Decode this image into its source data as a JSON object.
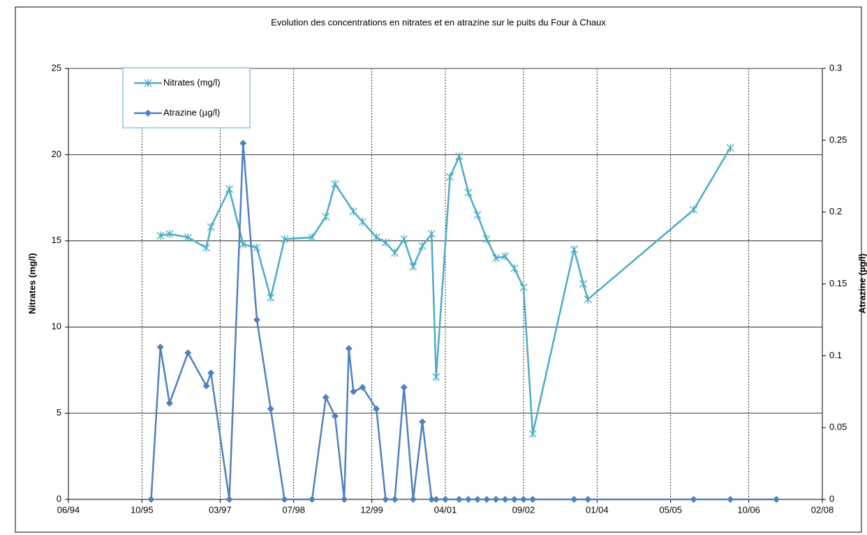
{
  "chart_data": {
    "type": "line",
    "title": "Evolution des concentrations en nitrates et en atrazine sur le puits du Four à Chaux",
    "y_label": "Nitrates (mg/l)",
    "y2_label": "Atrazine (µg/l)",
    "xlim": [
      "1994-06",
      "2008-02"
    ],
    "xticks": [
      {
        "value": "1994-06",
        "label": "06/94"
      },
      {
        "value": "1995-10",
        "label": "10/95"
      },
      {
        "value": "1997-03",
        "label": "03/97"
      },
      {
        "value": "1998-07",
        "label": "07/98"
      },
      {
        "value": "1999-12",
        "label": "12/99"
      },
      {
        "value": "2001-04",
        "label": "04/01"
      },
      {
        "value": "2002-09",
        "label": "09/02"
      },
      {
        "value": "2004-01",
        "label": "01/04"
      },
      {
        "value": "2005-05",
        "label": "05/05"
      },
      {
        "value": "2006-10",
        "label": "10/06"
      },
      {
        "value": "2008-02",
        "label": "02/08"
      }
    ],
    "ylim": [
      0,
      25
    ],
    "yticks": [
      0,
      5,
      10,
      15,
      20,
      25
    ],
    "y2lim": [
      0,
      0.3
    ],
    "y2ticks": [
      0,
      0.05,
      0.1,
      0.15,
      0.2,
      0.25,
      0.3
    ],
    "grid": true,
    "legend": "top-left",
    "series": [
      {
        "name": "Nitrates (mg/l)",
        "color": "#4bacc6",
        "marker": "asterisk",
        "x": [
          "1996-02",
          "1996-04",
          "1996-08",
          "1996-12",
          "1997-01",
          "1997-05",
          "1997-08",
          "1997-11",
          "1998-02",
          "1998-05",
          "1998-11",
          "1999-02",
          "1999-04",
          "1999-08",
          "1999-10",
          "2000-01",
          "2000-03",
          "2000-05",
          "2000-07",
          "2000-09",
          "2000-11",
          "2001-01",
          "2001-02",
          "2001-05",
          "2001-07",
          "2001-09",
          "2001-11",
          "2002-01",
          "2002-03",
          "2002-05",
          "2002-07",
          "2002-09",
          "2002-11",
          "2003-08",
          "2003-10",
          "2003-11",
          "2005-10",
          "2006-06"
        ],
        "values": [
          15.3,
          15.4,
          15.2,
          14.6,
          15.8,
          18.0,
          14.8,
          14.6,
          11.7,
          15.1,
          15.2,
          16.4,
          18.3,
          16.7,
          16.1,
          15.2,
          14.9,
          14.3,
          15.1,
          13.5,
          14.7,
          15.4,
          7.1,
          18.7,
          19.9,
          17.8,
          16.5,
          15.1,
          14.0,
          14.1,
          13.4,
          12.3,
          3.8,
          14.5,
          12.5,
          11.6,
          16.8,
          20.4
        ]
      },
      {
        "name": "Atrazine (µg/l)",
        "color": "#4f81bd",
        "marker": "diamond",
        "axis": "y2",
        "x": [
          "1995-12",
          "1996-02",
          "1996-04",
          "1996-08",
          "1996-12",
          "1997-01",
          "1997-05",
          "1997-08",
          "1997-11",
          "1998-02",
          "1998-05",
          "1998-11",
          "1999-02",
          "1999-04",
          "1999-06",
          "1999-07",
          "1999-08",
          "1999-10",
          "2000-01",
          "2000-03",
          "2000-05",
          "2000-07",
          "2000-09",
          "2000-11",
          "2001-01",
          "2001-02",
          "2001-04",
          "2001-07",
          "2001-09",
          "2001-11",
          "2002-01",
          "2002-03",
          "2002-05",
          "2002-07",
          "2002-09",
          "2002-11",
          "2003-08",
          "2003-11",
          "2005-10",
          "2006-06",
          "2007-04"
        ],
        "values": [
          0,
          0.106,
          0.067,
          0.102,
          0.079,
          0.088,
          0,
          0.248,
          0.125,
          0.063,
          0,
          0,
          0.071,
          0.058,
          0,
          0.105,
          0.075,
          0.078,
          0.063,
          0,
          0,
          0.078,
          0,
          0.054,
          0,
          0,
          0,
          0,
          0,
          0,
          0,
          0,
          0,
          0,
          0,
          0,
          0,
          0,
          0,
          0,
          0
        ]
      }
    ]
  }
}
